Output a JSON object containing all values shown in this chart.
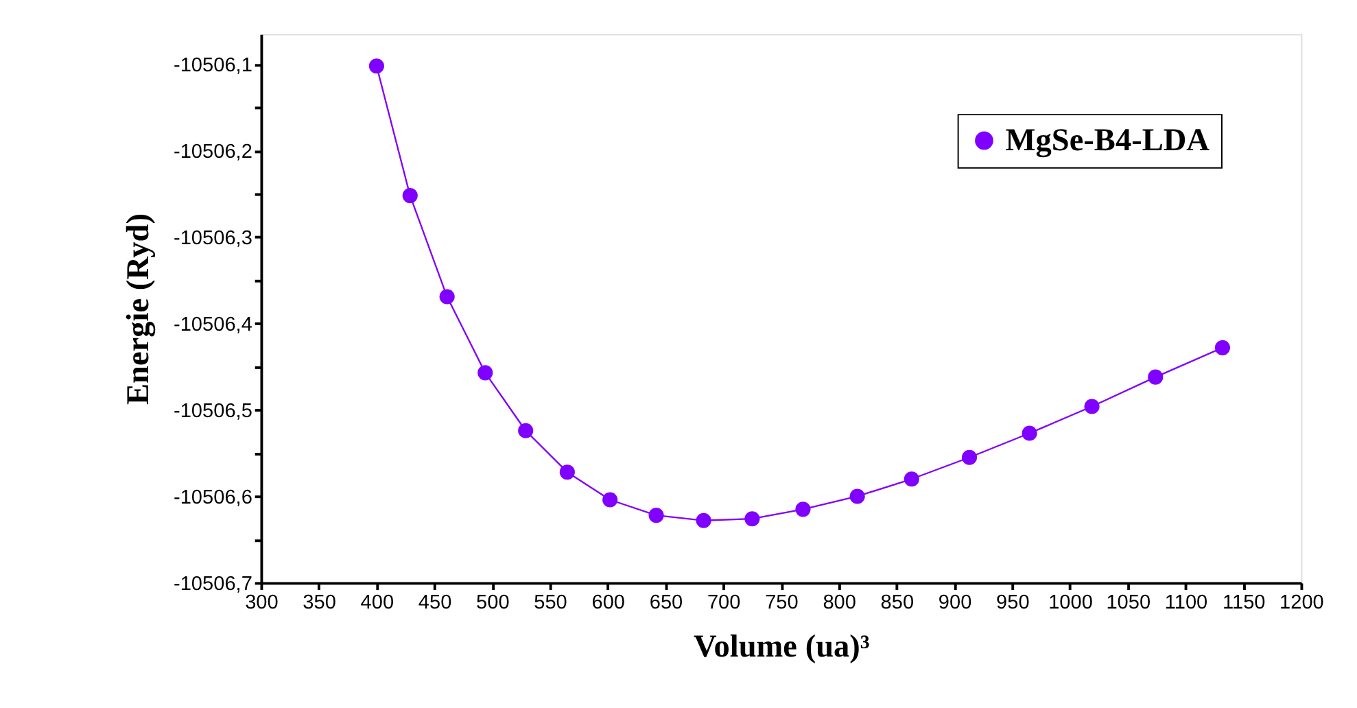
{
  "chart_data": {
    "type": "line",
    "xlabel": "Volume (ua)³",
    "ylabel": "Energie (Ryd)",
    "x": [
      400,
      429,
      461,
      494,
      529,
      565,
      602,
      642,
      683,
      725,
      769,
      816,
      863,
      913,
      965,
      1019,
      1074,
      1132
    ],
    "series": [
      {
        "name": "MgSe-B4-LDA",
        "color": "#8000ff",
        "values": [
          -10506.102,
          -10506.252,
          -10506.369,
          -10506.457,
          -10506.524,
          -10506.572,
          -10506.604,
          -10506.622,
          -10506.628,
          -10506.626,
          -10506.615,
          -10506.6,
          -10506.58,
          -10506.555,
          -10506.527,
          -10506.496,
          -10506.462,
          -10506.428
        ]
      }
    ],
    "xlim": [
      300,
      1200
    ],
    "xticks": [
      300,
      350,
      400,
      450,
      500,
      550,
      600,
      650,
      700,
      750,
      800,
      850,
      900,
      950,
      1000,
      1050,
      1100,
      1150,
      1200
    ],
    "ylim": [
      -10506.7,
      -10506.065
    ],
    "yticks": [
      {
        "value": -10506.7,
        "label": "-10506,7"
      },
      {
        "value": -10506.65,
        "label": null
      },
      {
        "value": -10506.6,
        "label": "-10506,6"
      },
      {
        "value": -10506.55,
        "label": null
      },
      {
        "value": -10506.5,
        "label": "-10506,5"
      },
      {
        "value": -10506.45,
        "label": null
      },
      {
        "value": -10506.4,
        "label": "-10506,4"
      },
      {
        "value": -10506.35,
        "label": null
      },
      {
        "value": -10506.3,
        "label": "-10506,3"
      },
      {
        "value": -10506.25,
        "label": null
      },
      {
        "value": -10506.2,
        "label": "-10506,2"
      },
      {
        "value": -10506.15,
        "label": null
      },
      {
        "value": -10506.1,
        "label": "-10506,1"
      }
    ],
    "grid": false,
    "legend": "top right",
    "marker": "circle",
    "line_style": "solid"
  }
}
